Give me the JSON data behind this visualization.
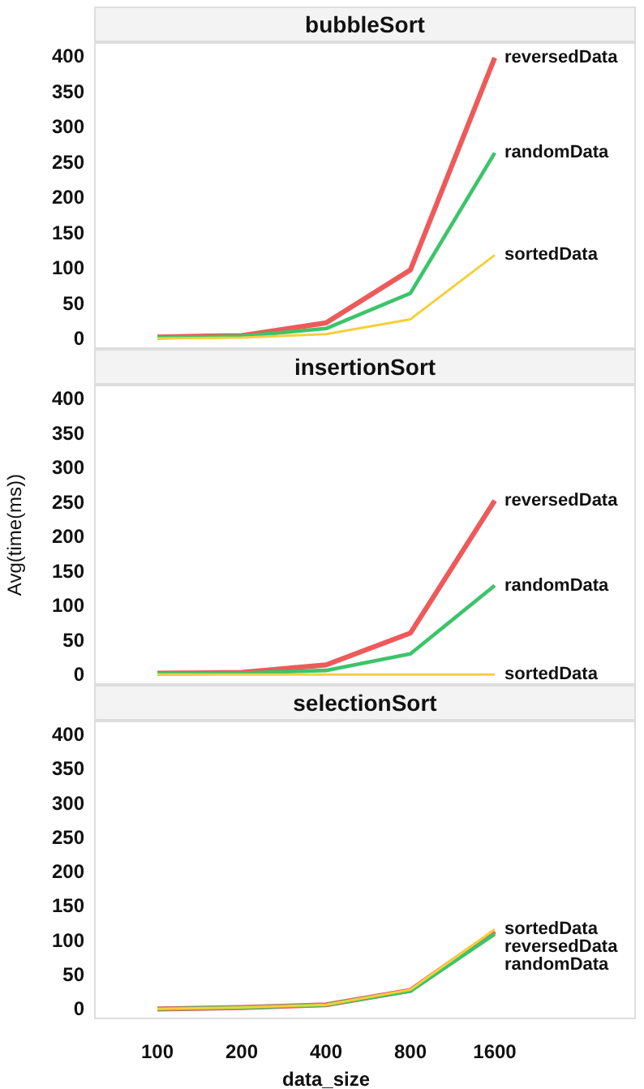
{
  "chart_data": [
    {
      "type": "line",
      "title": "bubbleSort",
      "categories": [
        "100",
        "200",
        "400",
        "800",
        "1600"
      ],
      "ylim": [
        -15,
        420
      ],
      "yticks": [
        0,
        50,
        100,
        150,
        200,
        250,
        300,
        350,
        400
      ],
      "tick_labels": "y",
      "marker": "none",
      "legend": false,
      "series": [
        {
          "name": "reversedData",
          "color": "#ee5a5a",
          "values": [
            2,
            4,
            22,
            97,
            398
          ]
        },
        {
          "name": "randomData",
          "color": "#3cc46a",
          "values": [
            1,
            3,
            14,
            64,
            263
          ]
        },
        {
          "name": "sortedData",
          "color": "#f5cf3b",
          "values": [
            0,
            1,
            6,
            27,
            118
          ]
        }
      ]
    },
    {
      "type": "line",
      "title": "insertionSort",
      "ylabel": "Avg(time(ms))",
      "categories": [
        "100",
        "200",
        "400",
        "800",
        "1600"
      ],
      "ylim": [
        -15,
        420
      ],
      "yticks": [
        0,
        50,
        100,
        150,
        200,
        250,
        300,
        350,
        400
      ],
      "tick_labels": "y",
      "marker": "none",
      "legend": false,
      "series": [
        {
          "name": "reversedData",
          "color": "#ee5a5a",
          "values": [
            2,
            3,
            14,
            60,
            252
          ]
        },
        {
          "name": "randomData",
          "color": "#3cc46a",
          "values": [
            1,
            2,
            6,
            30,
            129
          ]
        },
        {
          "name": "sortedData",
          "color": "#f5cf3b",
          "values": [
            0,
            0,
            0,
            0,
            0
          ]
        }
      ]
    },
    {
      "type": "line",
      "title": "selectionSort",
      "xlabel": "data_size",
      "categories": [
        "100",
        "200",
        "400",
        "800",
        "1600"
      ],
      "ylim": [
        -15,
        420
      ],
      "yticks": [
        0,
        50,
        100,
        150,
        200,
        250,
        300,
        350,
        400
      ],
      "marker": "none",
      "legend": false,
      "series": [
        {
          "name": "reversedData",
          "color": "#ee5a5a",
          "values": [
            0,
            2,
            6,
            27,
            113
          ]
        },
        {
          "name": "randomData",
          "color": "#3cc46a",
          "values": [
            0,
            2,
            6,
            26,
            109
          ]
        },
        {
          "name": "sortedData",
          "color": "#f5cf3b",
          "values": [
            0,
            2,
            6,
            28,
            116
          ]
        }
      ]
    }
  ]
}
